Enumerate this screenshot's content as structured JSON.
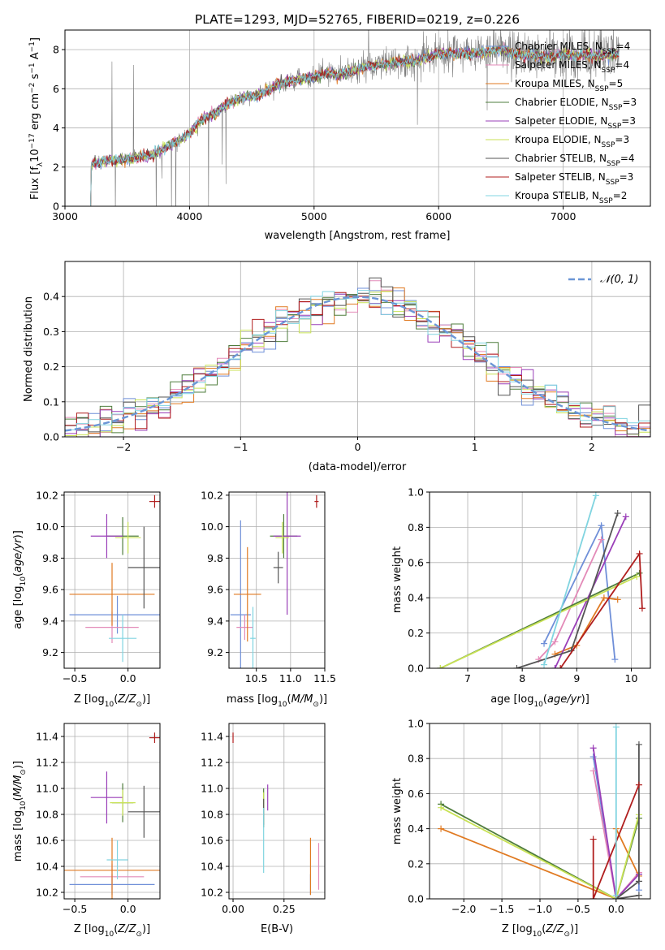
{
  "colors": {
    "Chabrier MILES": "#6f8fd8",
    "Salpeter MILES": "#e38ab8",
    "Kroupa MILES": "#e07a22",
    "Chabrier ELODIE": "#4f7d3c",
    "Salpeter ELODIE": "#9a3fb8",
    "Kroupa ELODIE": "#c8e255",
    "Chabrier STELIB": "#555555",
    "Salpeter STELIB": "#b01e1e",
    "Kroupa STELIB": "#80d4e0",
    "data": "#808080",
    "normal": "#6b96d6"
  },
  "chart_data": [
    {
      "id": "spectrum",
      "type": "line",
      "title": "PLATE=1293, MJD=52765, FIBERID=0219, z=0.226",
      "xlabel": "wavelength [Angstrom, rest frame]",
      "ylabel": "Flux [fλ10⁻¹⁷ erg cm⁻² s⁻¹ A⁻¹]",
      "xlim": [
        3000,
        7700
      ],
      "ylim": [
        0,
        9
      ],
      "xticks": [
        3000,
        4000,
        5000,
        6000,
        7000
      ],
      "yticks": [
        0,
        2,
        4,
        6,
        8
      ],
      "legend": "upper right",
      "legend_entries": [
        {
          "name": "Chabrier MILES",
          "nssp": "4"
        },
        {
          "name": "Salpeter MILES",
          "nssp": "4"
        },
        {
          "name": "Kroupa MILES",
          "nssp": "5"
        },
        {
          "name": "Chabrier ELODIE",
          "nssp": "3"
        },
        {
          "name": "Salpeter ELODIE",
          "nssp": "3"
        },
        {
          "name": "Kroupa ELODIE",
          "nssp": "3"
        },
        {
          "name": "Chabrier STELIB",
          "nssp": "4"
        },
        {
          "name": "Salpeter STELIB",
          "nssp": "3"
        },
        {
          "name": "Kroupa STELIB",
          "nssp": "2"
        }
      ],
      "continuum": [
        [
          3200,
          0
        ],
        [
          3210,
          2.1
        ],
        [
          3300,
          2.3
        ],
        [
          3500,
          2.4
        ],
        [
          3600,
          2.5
        ],
        [
          3700,
          2.6
        ],
        [
          3800,
          3.0
        ],
        [
          3900,
          3.3
        ],
        [
          4000,
          3.7
        ],
        [
          4100,
          4.5
        ],
        [
          4200,
          4.7
        ],
        [
          4300,
          5.2
        ],
        [
          4400,
          5.5
        ],
        [
          4500,
          5.6
        ],
        [
          4600,
          5.8
        ],
        [
          4700,
          6.2
        ],
        [
          4800,
          6.4
        ],
        [
          4900,
          6.5
        ],
        [
          5000,
          6.6
        ],
        [
          5100,
          6.8
        ],
        [
          5200,
          6.7
        ],
        [
          5300,
          6.9
        ],
        [
          5400,
          7.1
        ],
        [
          5500,
          7.2
        ],
        [
          5600,
          7.3
        ],
        [
          5700,
          7.4
        ],
        [
          5800,
          7.4
        ],
        [
          5900,
          7.6
        ],
        [
          6000,
          7.8
        ],
        [
          6100,
          7.8
        ],
        [
          6200,
          7.8
        ],
        [
          6300,
          7.8
        ],
        [
          6400,
          7.9
        ],
        [
          6500,
          8.0
        ],
        [
          6600,
          7.8
        ],
        [
          6700,
          7.7
        ],
        [
          6800,
          7.7
        ],
        [
          6900,
          7.6
        ],
        [
          7000,
          7.8
        ],
        [
          7100,
          7.7
        ],
        [
          7200,
          7.7
        ],
        [
          7300,
          7.7
        ],
        [
          7400,
          7.8
        ]
      ]
    },
    {
      "id": "residuals",
      "type": "histogram",
      "xlabel": "(data-model)/error",
      "ylabel": "Normed distribution",
      "xlim": [
        -2.5,
        2.5
      ],
      "ylim": [
        0,
        0.5
      ],
      "xticks": [
        -2,
        -1,
        0,
        1,
        2
      ],
      "yticks": [
        0.0,
        0.1,
        0.2,
        0.3,
        0.4
      ],
      "legend": "upper right",
      "legend_label": "𝒩(0, 1)",
      "bin_width": 0.1,
      "bin_start": -2.5
    },
    {
      "id": "age_vs_Z",
      "type": "errorbar",
      "xlabel": "Z [log₁₀(Z/Z⊙)]",
      "ylabel": "age  [log₁₀(age/yr)]",
      "xlim": [
        -0.6,
        0.3
      ],
      "ylim": [
        9.1,
        10.22
      ],
      "xticks": [
        -0.5,
        0.0
      ],
      "yticks": [
        9.2,
        9.4,
        9.6,
        9.8,
        10.0,
        10.2
      ],
      "points": [
        {
          "model": "Chabrier MILES",
          "x": -0.1,
          "xe": 0.45,
          "y": 9.44,
          "ye": 0.12
        },
        {
          "model": "Salpeter MILES",
          "x": -0.15,
          "xe": 0.25,
          "y": 9.36,
          "ye": 0.1
        },
        {
          "model": "Kroupa MILES",
          "x": -0.15,
          "xe": 0.4,
          "y": 9.57,
          "ye": 0.2
        },
        {
          "model": "Chabrier ELODIE",
          "x": -0.05,
          "xe": 0.15,
          "y": 9.94,
          "ye": 0.12
        },
        {
          "model": "Salpeter ELODIE",
          "x": -0.2,
          "xe": 0.15,
          "y": 9.94,
          "ye": 0.14
        },
        {
          "model": "Kroupa ELODIE",
          "x": 0.0,
          "xe": 0.12,
          "y": 9.93,
          "ye": 0.1
        },
        {
          "model": "Chabrier STELIB",
          "x": 0.15,
          "xe": 0.15,
          "y": 9.74,
          "ye": 0.26
        },
        {
          "model": "Salpeter STELIB",
          "x": 0.25,
          "xe": 0.05,
          "y": 10.16,
          "ye": 0.04
        },
        {
          "model": "Kroupa STELIB",
          "x": -0.05,
          "xe": 0.13,
          "y": 9.29,
          "ye": 0.15
        }
      ]
    },
    {
      "id": "age_vs_mass",
      "type": "errorbar",
      "xlabel": "mass [log₁₀(M/M⊙)]",
      "ylabel": "",
      "xlim": [
        10.1,
        11.5
      ],
      "ylim": [
        9.1,
        10.22
      ],
      "xticks": [
        10.5,
        11.0,
        11.5
      ],
      "yticks": [
        9.2,
        9.4,
        9.6,
        9.8,
        10.0,
        10.2
      ],
      "points": [
        {
          "model": "Chabrier MILES",
          "x": 10.27,
          "xe": 0.15,
          "y": 9.44,
          "ye": 0.6
        },
        {
          "model": "Salpeter MILES",
          "x": 10.33,
          "xe": 0.12,
          "y": 9.36,
          "ye": 0.08
        },
        {
          "model": "Kroupa MILES",
          "x": 10.37,
          "xe": 0.2,
          "y": 9.57,
          "ye": 0.3
        },
        {
          "model": "Chabrier ELODIE",
          "x": 10.9,
          "xe": 0.2,
          "y": 9.94,
          "ye": 0.14
        },
        {
          "model": "Salpeter ELODIE",
          "x": 10.95,
          "xe": 0.2,
          "y": 9.94,
          "ye": 0.5
        },
        {
          "model": "Kroupa ELODIE",
          "x": 10.88,
          "xe": 0.1,
          "y": 9.93,
          "ye": 0.1
        },
        {
          "model": "Chabrier STELIB",
          "x": 10.82,
          "xe": 0.07,
          "y": 9.74,
          "ye": 0.1
        },
        {
          "model": "Salpeter STELIB",
          "x": 11.38,
          "xe": 0.03,
          "y": 10.16,
          "ye": 0.04
        },
        {
          "model": "Kroupa STELIB",
          "x": 10.45,
          "xe": 0.04,
          "y": 9.29,
          "ye": 0.2
        }
      ]
    },
    {
      "id": "mass_weight_vs_age",
      "type": "line",
      "xlabel": "age  [log₁₀(age/yr)]",
      "ylabel": "mass weight",
      "xlim": [
        6.3,
        10.35
      ],
      "ylim": [
        0,
        1
      ],
      "xticks": [
        7,
        8,
        9,
        10
      ],
      "yticks": [
        0.0,
        0.2,
        0.4,
        0.6,
        0.8,
        1.0
      ],
      "series": [
        {
          "model": "Chabrier MILES",
          "points": [
            [
              8.4,
              0.14
            ],
            [
              9.45,
              0.81
            ],
            [
              9.7,
              0.05
            ]
          ]
        },
        {
          "model": "Salpeter MILES",
          "points": [
            [
              8.3,
              0.05
            ],
            [
              8.6,
              0.15
            ],
            [
              9.45,
              0.73
            ]
          ]
        },
        {
          "model": "Kroupa MILES",
          "points": [
            [
              8.6,
              0.08
            ],
            [
              9.0,
              0.13
            ],
            [
              9.5,
              0.4
            ],
            [
              9.75,
              0.39
            ]
          ]
        },
        {
          "model": "Chabrier ELODIE",
          "points": [
            [
              6.5,
              0.0
            ],
            [
              10.15,
              0.54
            ]
          ]
        },
        {
          "model": "Salpeter ELODIE",
          "points": [
            [
              8.6,
              0.0
            ],
            [
              9.9,
              0.86
            ]
          ]
        },
        {
          "model": "Kroupa ELODIE",
          "points": [
            [
              6.5,
              0.0
            ],
            [
              10.1,
              0.52
            ]
          ]
        },
        {
          "model": "Chabrier STELIB",
          "points": [
            [
              7.9,
              0.0
            ],
            [
              8.9,
              0.1
            ],
            [
              9.75,
              0.88
            ]
          ]
        },
        {
          "model": "Salpeter STELIB",
          "points": [
            [
              8.7,
              0.0
            ],
            [
              10.15,
              0.65
            ],
            [
              10.2,
              0.34
            ]
          ]
        },
        {
          "model": "Kroupa STELIB",
          "points": [
            [
              8.4,
              0.02
            ],
            [
              9.35,
              0.98
            ]
          ]
        }
      ]
    },
    {
      "id": "mass_vs_Z",
      "type": "errorbar",
      "xlabel": "Z [log₁₀(Z/Z⊙)]",
      "ylabel": "mass [log₁₀(M/M⊙)]",
      "xlim": [
        -0.6,
        0.3
      ],
      "ylim": [
        10.15,
        11.5
      ],
      "xticks": [
        -0.5,
        0.0
      ],
      "yticks": [
        10.2,
        10.4,
        10.6,
        10.8,
        11.0,
        11.2,
        11.4
      ],
      "points": [
        {
          "model": "Chabrier MILES",
          "x": -0.15,
          "xe": 0.4,
          "y": 10.26,
          "ye": 0.08
        },
        {
          "model": "Salpeter MILES",
          "x": -0.15,
          "xe": 0.3,
          "y": 10.32,
          "ye": 0.1
        },
        {
          "model": "Kroupa MILES",
          "x": -0.15,
          "xe": 0.5,
          "y": 10.37,
          "ye": 0.25
        },
        {
          "model": "Chabrier ELODIE",
          "x": -0.05,
          "xe": 0.1,
          "y": 10.89,
          "ye": 0.15
        },
        {
          "model": "Salpeter ELODIE",
          "x": -0.2,
          "xe": 0.15,
          "y": 10.93,
          "ye": 0.2
        },
        {
          "model": "Kroupa ELODIE",
          "x": -0.05,
          "xe": 0.12,
          "y": 10.89,
          "ye": 0.1
        },
        {
          "model": "Chabrier STELIB",
          "x": 0.15,
          "xe": 0.15,
          "y": 10.82,
          "ye": 0.2
        },
        {
          "model": "Salpeter STELIB",
          "x": 0.25,
          "xe": 0.05,
          "y": 11.39,
          "ye": 0.04
        },
        {
          "model": "Kroupa STELIB",
          "x": -0.1,
          "xe": 0.1,
          "y": 10.45,
          "ye": 0.15
        }
      ]
    },
    {
      "id": "mass_vs_ebv",
      "type": "errorbar",
      "xlabel": "E(B-V)",
      "ylabel": "",
      "xlim": [
        -0.02,
        0.45
      ],
      "ylim": [
        10.15,
        11.5
      ],
      "xticks": [
        0.0,
        0.25
      ],
      "yticks": [
        10.2,
        10.4,
        10.6,
        10.8,
        11.0,
        11.2,
        11.4
      ],
      "points": [
        {
          "model": "Chabrier MILES",
          "x": 0.38,
          "xe": 0.0,
          "y": 10.26,
          "ye": 0.08
        },
        {
          "model": "Salpeter MILES",
          "x": 0.42,
          "xe": 0.0,
          "y": 10.4,
          "ye": 0.18
        },
        {
          "model": "Kroupa MILES",
          "x": 0.38,
          "xe": 0.0,
          "y": 10.4,
          "ye": 0.22
        },
        {
          "model": "Chabrier ELODIE",
          "x": 0.15,
          "xe": 0.0,
          "y": 10.85,
          "ye": 0.15
        },
        {
          "model": "Salpeter ELODIE",
          "x": 0.17,
          "xe": 0.0,
          "y": 10.93,
          "ye": 0.1
        },
        {
          "model": "Kroupa ELODIE",
          "x": 0.15,
          "xe": 0.0,
          "y": 10.85,
          "ye": 0.12
        },
        {
          "model": "Chabrier STELIB",
          "x": 0.15,
          "xe": 0.0,
          "y": 10.82,
          "ye": 0.1
        },
        {
          "model": "Salpeter STELIB",
          "x": 0.0,
          "xe": 0.0,
          "y": 11.39,
          "ye": 0.04
        },
        {
          "model": "Kroupa STELIB",
          "x": 0.15,
          "xe": 0.0,
          "y": 10.6,
          "ye": 0.25
        }
      ]
    },
    {
      "id": "mass_weight_vs_Z",
      "type": "line",
      "xlabel": "Z [log₁₀(Z/Z⊙)]",
      "ylabel": "mass weight",
      "xlim": [
        -2.45,
        0.45
      ],
      "ylim": [
        0,
        1
      ],
      "xticks": [
        -2.0,
        -1.5,
        -1.0,
        -0.5,
        0.0
      ],
      "yticks": [
        0.0,
        0.2,
        0.4,
        0.6,
        0.8,
        1.0
      ],
      "series": [
        {
          "model": "Chabrier MILES",
          "points": [
            [
              -0.3,
              0.81
            ],
            [
              0.0,
              0.0
            ],
            [
              0.3,
              0.14
            ],
            [
              0.3,
              0.05
            ]
          ]
        },
        {
          "model": "Salpeter MILES",
          "points": [
            [
              -0.3,
              0.73
            ],
            [
              0.0,
              0.0
            ],
            [
              0.3,
              0.15
            ]
          ]
        },
        {
          "model": "Kroupa MILES",
          "points": [
            [
              -2.3,
              0.4
            ],
            [
              0.0,
              0.0
            ],
            [
              0.0,
              0.4
            ],
            [
              0.3,
              0.13
            ]
          ]
        },
        {
          "model": "Chabrier ELODIE",
          "points": [
            [
              -2.3,
              0.54
            ],
            [
              0.0,
              0.0
            ],
            [
              0.3,
              0.46
            ]
          ]
        },
        {
          "model": "Salpeter ELODIE",
          "points": [
            [
              -0.3,
              0.86
            ],
            [
              0.0,
              0.0
            ],
            [
              0.3,
              0.14
            ]
          ]
        },
        {
          "model": "Kroupa ELODIE",
          "points": [
            [
              -2.3,
              0.52
            ],
            [
              0.0,
              0.0
            ],
            [
              0.3,
              0.48
            ]
          ]
        },
        {
          "model": "Chabrier STELIB",
          "points": [
            [
              0.3,
              0.88
            ],
            [
              0.3,
              0.1
            ],
            [
              0.0,
              0.0
            ],
            [
              0.3,
              0.02
            ]
          ]
        },
        {
          "model": "Salpeter STELIB",
          "points": [
            [
              -0.3,
              0.34
            ],
            [
              -0.3,
              0.0
            ],
            [
              0.3,
              0.65
            ]
          ]
        },
        {
          "model": "Kroupa STELIB",
          "points": [
            [
              0.0,
              0.98
            ],
            [
              0.0,
              0.02
            ]
          ]
        }
      ]
    }
  ]
}
